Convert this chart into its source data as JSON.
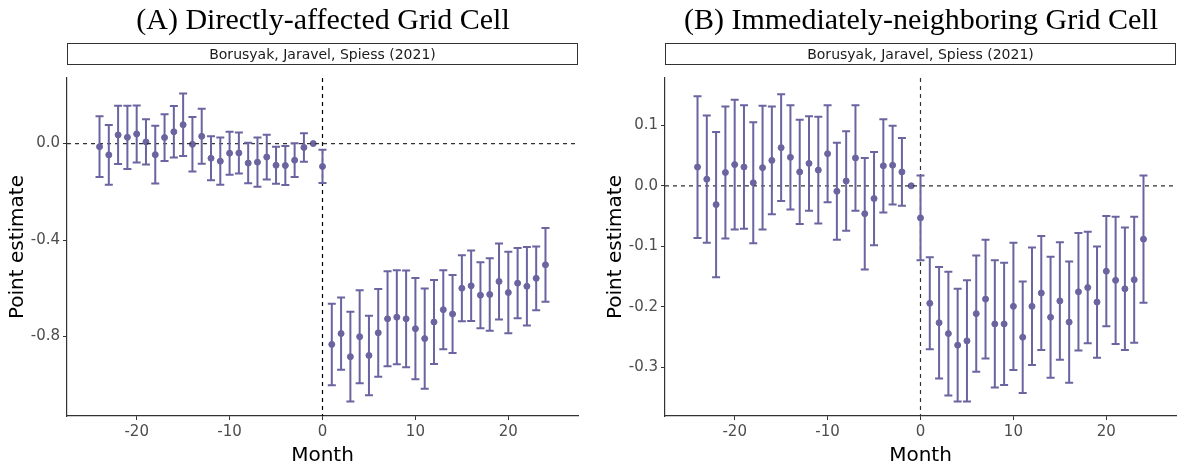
{
  "chart_data": [
    {
      "type": "scatter",
      "title": "(A) Directly-affected Grid Cell",
      "subtitle": "Borusyak, Jaravel, Spiess (2021)",
      "xlabel": "Month",
      "ylabel": "Point estimate",
      "color": "#6a64a0",
      "marker": "circle",
      "grid": false,
      "legend": false,
      "x": [
        -24,
        -23,
        -22,
        -21,
        -20,
        -19,
        -18,
        -17,
        -16,
        -15,
        -14,
        -13,
        -12,
        -11,
        -10,
        -9,
        -8,
        -7,
        -6,
        -5,
        -4,
        -3,
        -2,
        -1,
        0,
        1,
        2,
        3,
        4,
        5,
        6,
        7,
        8,
        9,
        10,
        11,
        12,
        13,
        14,
        15,
        16,
        17,
        18,
        19,
        20,
        21,
        22,
        23,
        24
      ],
      "values": [
        -0.013,
        -0.047,
        0.036,
        0.026,
        0.04,
        0.007,
        -0.046,
        0.025,
        0.049,
        0.078,
        -0.003,
        0.03,
        -0.061,
        -0.073,
        -0.04,
        -0.039,
        -0.081,
        -0.077,
        -0.056,
        -0.09,
        -0.091,
        -0.069,
        -0.016,
        0,
        -0.095,
        -0.833,
        -0.788,
        -0.884,
        -0.801,
        -0.879,
        -0.785,
        -0.727,
        -0.72,
        -0.727,
        -0.768,
        -0.809,
        -0.74,
        -0.689,
        -0.707,
        -0.6,
        -0.59,
        -0.629,
        -0.626,
        -0.572,
        -0.618,
        -0.579,
        -0.592,
        -0.559,
        -0.503
      ],
      "errors": [
        0.126,
        0.124,
        0.121,
        0.131,
        0.118,
        0.094,
        0.12,
        0.097,
        0.107,
        0.13,
        0.113,
        0.114,
        0.091,
        0.098,
        0.089,
        0.085,
        0.084,
        0.102,
        0.093,
        0.077,
        0.081,
        0.07,
        0.059,
        null,
        0.069,
        0.169,
        0.15,
        0.186,
        0.193,
        0.165,
        0.182,
        0.197,
        0.195,
        0.201,
        0.21,
        0.208,
        0.174,
        0.164,
        0.162,
        0.137,
        0.146,
        0.137,
        0.15,
        0.158,
        0.169,
        0.146,
        0.163,
        0.132,
        0.153
      ],
      "xlim": [
        -27.5,
        27.5
      ],
      "xticks": [
        -20,
        -10,
        0,
        10,
        20
      ],
      "ylim": [
        -1.13,
        0.272
      ],
      "yticks": [
        {
          "value": -0.8,
          "label": "-0.8"
        },
        {
          "value": -0.4,
          "label": "-0.4"
        },
        {
          "value": 0,
          "label": "0.0"
        }
      ],
      "ref_lines": [
        {
          "axis": "y",
          "value": 0,
          "color": "#333333",
          "line_style": "dashed"
        },
        {
          "axis": "x",
          "value": 0,
          "color": "#000000",
          "line_style": "dashed"
        }
      ]
    },
    {
      "type": "scatter",
      "title": "(B) Immediately-neighboring Grid Cell",
      "subtitle": "Borusyak, Jaravel, Spiess (2021)",
      "xlabel": "Month",
      "ylabel": "Point estimate",
      "color": "#6a64a0",
      "marker": "circle",
      "grid": false,
      "legend": false,
      "x": [
        -24,
        -23,
        -22,
        -21,
        -20,
        -19,
        -18,
        -17,
        -16,
        -15,
        -14,
        -13,
        -12,
        -11,
        -10,
        -9,
        -8,
        -7,
        -6,
        -5,
        -4,
        -3,
        -2,
        -1,
        0,
        1,
        2,
        3,
        4,
        5,
        6,
        7,
        8,
        9,
        10,
        11,
        12,
        13,
        14,
        15,
        16,
        17,
        18,
        19,
        20,
        21,
        22,
        23,
        24
      ],
      "values": [
        0.031,
        0.011,
        -0.031,
        0.022,
        0.035,
        0.031,
        0.005,
        0.03,
        0.042,
        0.063,
        0.047,
        0.023,
        0.037,
        0.026,
        0.053,
        -0.009,
        0.008,
        0.046,
        -0.046,
        -0.021,
        0.033,
        0.034,
        0.023,
        0,
        -0.053,
        -0.194,
        -0.226,
        -0.244,
        -0.263,
        -0.256,
        -0.211,
        -0.187,
        -0.228,
        -0.228,
        -0.199,
        -0.25,
        -0.199,
        -0.177,
        -0.217,
        -0.19,
        -0.225,
        -0.175,
        -0.168,
        -0.192,
        -0.141,
        -0.156,
        -0.17,
        -0.155,
        -0.088
      ],
      "errors": [
        0.117,
        0.105,
        0.12,
        0.109,
        0.107,
        0.102,
        0.1,
        0.102,
        0.089,
        0.088,
        0.086,
        0.086,
        0.078,
        0.088,
        0.08,
        0.08,
        0.082,
        0.087,
        0.092,
        0.077,
        0.077,
        0.065,
        0.056,
        null,
        0.07,
        0.076,
        0.092,
        0.102,
        0.093,
        0.1,
        0.096,
        0.098,
        0.105,
        0.101,
        0.105,
        0.092,
        0.097,
        0.094,
        0.1,
        0.097,
        0.1,
        0.097,
        0.092,
        0.092,
        0.091,
        0.105,
        0.101,
        0.104,
        0.105
      ],
      "xlim": [
        -27.5,
        27.5
      ],
      "xticks": [
        -20,
        -10,
        0,
        10,
        20
      ],
      "ylim": [
        -0.38,
        0.178
      ],
      "yticks": [
        {
          "value": -0.3,
          "label": "-0.3"
        },
        {
          "value": -0.2,
          "label": "-0.2"
        },
        {
          "value": -0.1,
          "label": "-0.1"
        },
        {
          "value": 0,
          "label": "0.0"
        },
        {
          "value": 0.1,
          "label": "0.1"
        }
      ],
      "ref_lines": [
        {
          "axis": "y",
          "value": 0,
          "color": "#333333",
          "line_style": "dashed"
        },
        {
          "axis": "x",
          "value": 0,
          "color": "#333333",
          "line_style": "dashed"
        }
      ]
    }
  ]
}
